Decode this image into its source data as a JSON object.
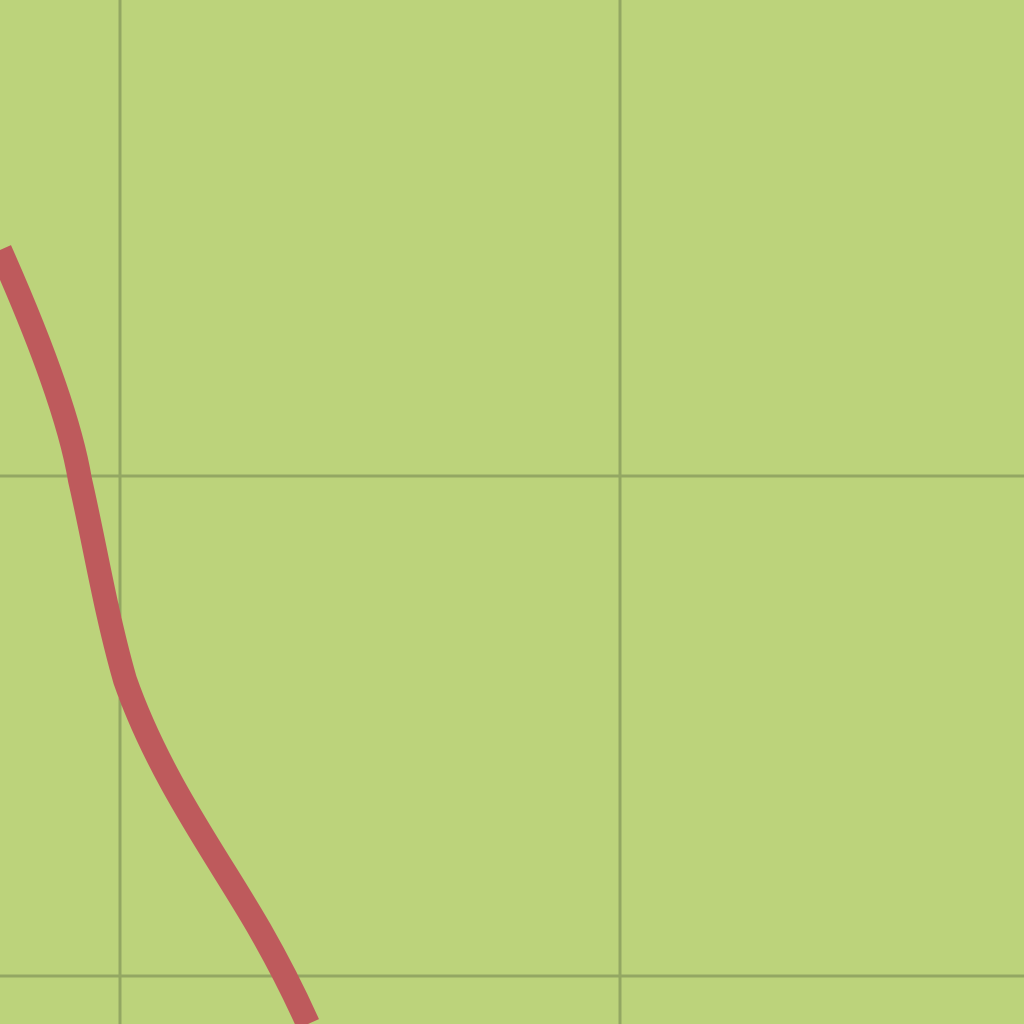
{
  "map": {
    "background_color": "#bcd37b",
    "grid_color": "#93a763",
    "features": [
      {
        "kind": "road",
        "color": "#be5a5c"
      }
    ]
  }
}
